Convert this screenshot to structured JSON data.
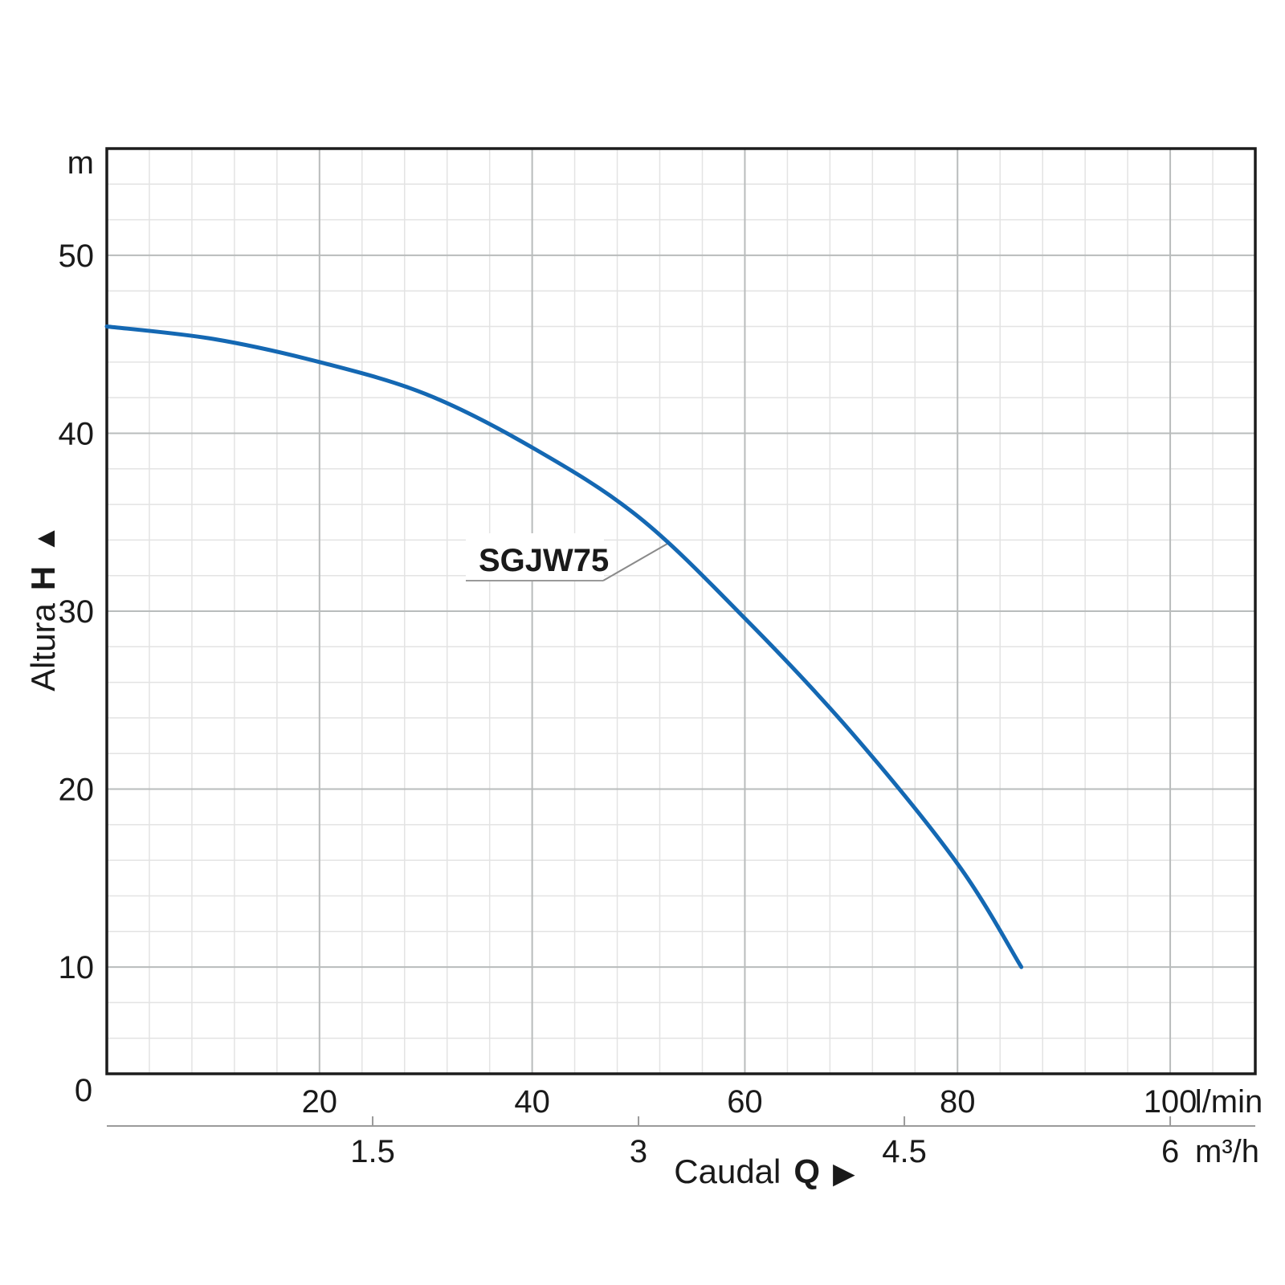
{
  "chart_data": {
    "type": "line",
    "series": [
      {
        "name": "SGJW75",
        "x_lmin": [
          0,
          10,
          20,
          30,
          40,
          50,
          60,
          70,
          80,
          86
        ],
        "y_m": [
          46,
          45.3,
          44,
          42.2,
          39.2,
          35.3,
          29.6,
          23.2,
          15.8,
          10
        ]
      }
    ],
    "x_axis_primary": {
      "title_parts": {
        "word": "Caudal",
        "symbol": "Q",
        "arrow": "▶"
      },
      "unit": "l/min",
      "major_ticks": [
        20,
        40,
        60,
        80,
        100
      ],
      "range": [
        0,
        108
      ],
      "minor_step": 4,
      "origin_label": "0"
    },
    "x_axis_secondary": {
      "unit": "m³/h",
      "ticks": [
        1.5,
        3,
        4.5,
        6
      ],
      "lmin_per_unit": 16.6667
    },
    "y_axis": {
      "title_parts": {
        "word": "Altura",
        "symbol": "H",
        "arrow": "▲"
      },
      "unit": "m",
      "major_ticks": [
        10,
        20,
        30,
        40,
        50
      ],
      "range": [
        4,
        56
      ],
      "minor_step": 2
    },
    "annotation": {
      "label": "SGJW75",
      "attach_q_lmin": 52.5,
      "attach_h_m": 33.8
    },
    "grid": "minor+major",
    "legend": "none",
    "colors": {
      "curve": "#1468b3",
      "grid_minor": "#e3e3e3",
      "grid_major": "#b9bcbc",
      "border": "#1c1c1c",
      "secondary_axis": "#9a9a9a",
      "text": "#1a1a1a"
    }
  }
}
